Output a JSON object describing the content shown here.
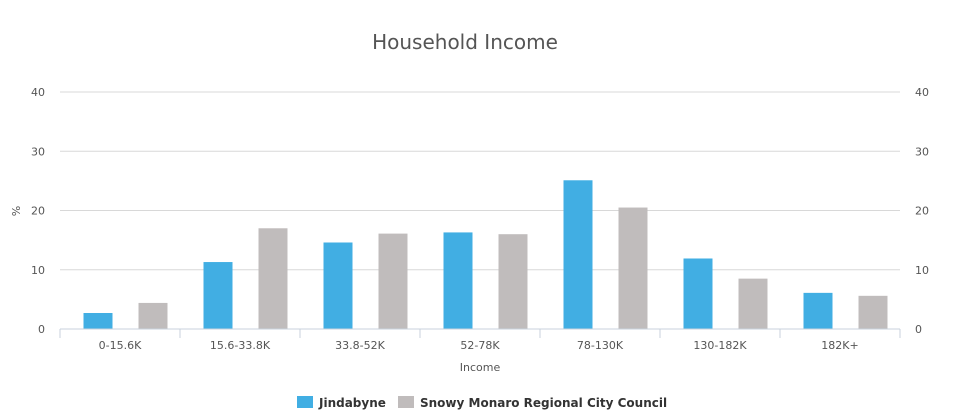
{
  "chart_data": {
    "type": "bar",
    "title": "Household Income",
    "xlabel": "Income",
    "ylabel": "%",
    "ylim": [
      0,
      40
    ],
    "yticks": [
      0,
      10,
      20,
      30,
      40
    ],
    "grid": true,
    "legend_position": "bottom",
    "categories": [
      "0-15.6K",
      "15.6-33.8K",
      "33.8-52K",
      "52-78K",
      "78-130K",
      "130-182K",
      "182K+"
    ],
    "series": [
      {
        "name": "Jindabyne",
        "color": "#41aee3",
        "values": [
          2.7,
          11.3,
          14.6,
          16.3,
          25.1,
          11.9,
          6.1
        ]
      },
      {
        "name": "Snowy Monaro Regional City Council",
        "color": "#c0bcbc",
        "values": [
          4.4,
          17.0,
          16.1,
          16.0,
          20.5,
          8.5,
          5.6
        ]
      }
    ]
  }
}
